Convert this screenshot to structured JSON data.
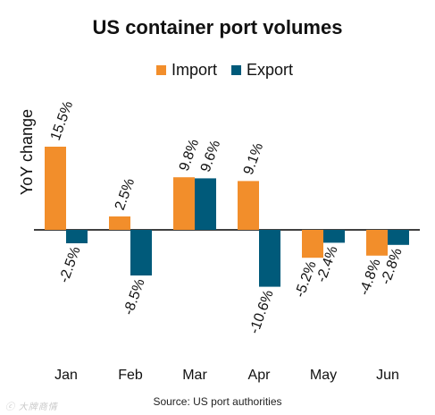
{
  "chart_data": {
    "type": "bar",
    "title": "US container port volumes",
    "ylabel": "YoY change",
    "xlabel": "",
    "categories": [
      "Jan",
      "Feb",
      "Mar",
      "Apr",
      "May",
      "Jun"
    ],
    "series": [
      {
        "name": "Import",
        "color": "#F28E2B",
        "values": [
          15.5,
          2.5,
          9.8,
          9.1,
          -5.2,
          -4.8
        ],
        "labels": [
          "15.5%",
          "2.5%",
          "9.8%",
          "9.1%",
          "-5.2%",
          "-4.8%"
        ]
      },
      {
        "name": "Export",
        "color": "#005A7A",
        "values": [
          -2.5,
          -8.5,
          9.6,
          -10.6,
          -2.4,
          -2.8
        ],
        "labels": [
          "-2.5%",
          "-8.5%",
          "9.6%",
          "-10.6%",
          "-2.4%",
          "-2.8%"
        ]
      }
    ],
    "ylim": [
      -11,
      16
    ],
    "grid": false,
    "legend_position": "top"
  },
  "source": "Source: US port authorities",
  "watermark": "ⓒ 大牌商情"
}
